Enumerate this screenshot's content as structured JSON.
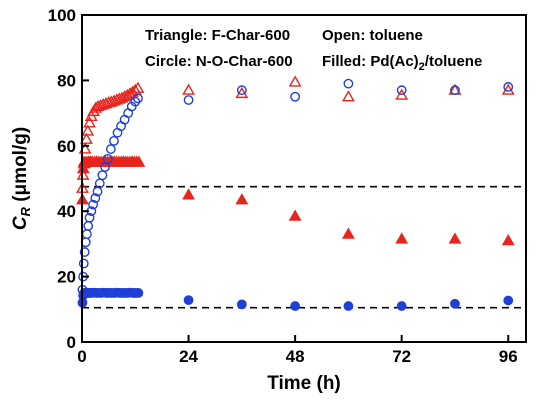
{
  "chart_data": {
    "type": "scatter",
    "xlabel": "Time (h)",
    "ylabel_main": "C",
    "ylabel_sub": "R",
    "ylabel_unit": " (μmol/g)",
    "xlim": [
      0,
      100
    ],
    "ylim": [
      0,
      100
    ],
    "xticks": [
      0,
      24,
      48,
      72,
      96
    ],
    "yticks": [
      0,
      20,
      40,
      60,
      80,
      100
    ],
    "grid": false,
    "legend": {
      "triangle": "Triangle: F-Char-600",
      "circle": "Circle: N-O-Char-600",
      "open": "Open: toluene",
      "filled_prefix": "Filled: Pd(Ac)",
      "filled_sub": "2",
      "filled_suffix": "/toluene"
    },
    "reference_lines": [
      47.5,
      10.5
    ],
    "colors": {
      "red": "#e8241c",
      "blue": "#1f3fd6"
    },
    "series": [
      {
        "marker": "triangle-open",
        "color": "red",
        "x": [
          0.1,
          0.25,
          0.45,
          0.7,
          1,
          1.3,
          1.7,
          2.1,
          2.6,
          3.1,
          3.6,
          4.2,
          4.8,
          5.4,
          6,
          6.6,
          7.2,
          7.8,
          8.4,
          9,
          9.6,
          10.2,
          10.8,
          11.4,
          12,
          12.6,
          24,
          36,
          48,
          60,
          72,
          84,
          96
        ],
        "y": [
          47,
          51,
          55,
          59,
          62,
          64.5,
          67,
          69,
          70.5,
          71.5,
          72,
          72.3,
          72.6,
          72.9,
          73.2,
          73.4,
          73.7,
          74,
          74.3,
          74.6,
          75,
          75.4,
          75.9,
          76.4,
          77,
          77.6,
          77,
          76,
          79.5,
          75,
          75.5,
          77,
          77
        ]
      },
      {
        "marker": "triangle-filled",
        "color": "red",
        "x": [
          0.1,
          0.3,
          0.5,
          0.8,
          1.1,
          1.5,
          1.9,
          2.3,
          2.8,
          3.3,
          3.8,
          4.3,
          4.8,
          5.3,
          5.8,
          6.3,
          6.8,
          7.3,
          7.8,
          8.3,
          8.8,
          9.3,
          9.8,
          10.3,
          10.8,
          11.3,
          11.8,
          12.3,
          12.8,
          24,
          36,
          48,
          60,
          72,
          84,
          96
        ],
        "y": [
          43.5,
          53,
          54.5,
          54.8,
          55,
          55,
          55.1,
          55,
          55,
          55.1,
          55,
          55,
          55,
          55.1,
          55,
          55,
          55,
          55.1,
          55,
          55,
          55,
          55.1,
          55,
          55,
          55,
          55.1,
          55,
          55,
          55,
          45,
          43.5,
          38.5,
          33,
          31.5,
          31.5,
          31
        ],
        "trend": [
          [
            0,
            43.5
          ],
          [
            24,
            45
          ],
          [
            36,
            43.5
          ],
          [
            48,
            38.5
          ],
          [
            60,
            33
          ],
          [
            72,
            31.5
          ],
          [
            84,
            31.5
          ],
          [
            96,
            31
          ]
        ]
      },
      {
        "marker": "circle-open",
        "color": "blue",
        "x": [
          0.1,
          0.25,
          0.4,
          0.6,
          0.85,
          1.1,
          1.4,
          1.7,
          2.1,
          2.5,
          3,
          3.5,
          4,
          4.6,
          5.2,
          5.8,
          6.5,
          7.2,
          8,
          8.8,
          9.6,
          10.4,
          11.2,
          12,
          12.6,
          24,
          36,
          48,
          60,
          72,
          84,
          96
        ],
        "y": [
          16,
          20,
          24,
          27.5,
          30.5,
          33,
          35.5,
          38,
          40,
          42,
          44,
          46,
          48.5,
          51,
          53.5,
          56,
          59,
          61.5,
          64,
          66,
          68,
          70,
          72,
          73.5,
          74.5,
          74,
          77,
          75,
          79,
          77,
          77,
          78
        ]
      },
      {
        "marker": "circle-filled",
        "color": "blue",
        "x": [
          0.1,
          0.25,
          0.4,
          0.6,
          0.85,
          1.1,
          1.4,
          1.8,
          2.2,
          2.7,
          3.2,
          3.7,
          4.3,
          4.9,
          5.5,
          6.1,
          6.7,
          7.3,
          7.9,
          8.5,
          9.1,
          9.7,
          10.3,
          10.9,
          11.5,
          12.1,
          12.7,
          24,
          36,
          48,
          60,
          72,
          84,
          96
        ],
        "y": [
          12,
          14.2,
          14.8,
          15,
          15,
          15.1,
          15,
          15,
          15,
          15.1,
          15,
          15,
          15,
          15.1,
          15,
          15,
          15,
          15,
          15.1,
          15,
          15,
          15,
          15,
          15.1,
          15,
          15,
          15,
          12.8,
          11.5,
          11,
          11,
          11,
          11.7,
          12.7
        ]
      }
    ]
  }
}
